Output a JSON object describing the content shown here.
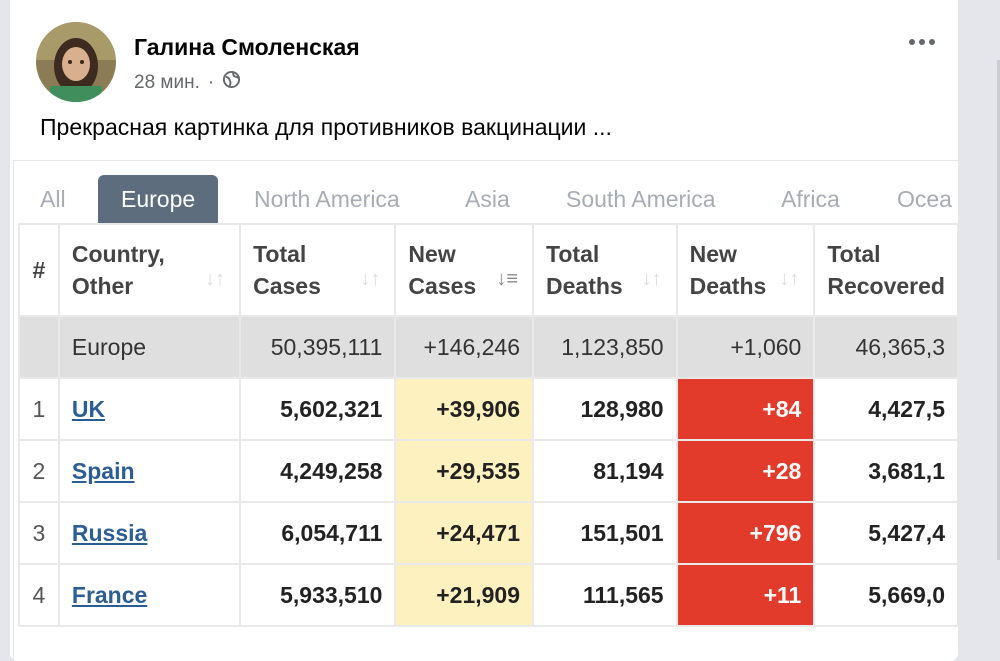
{
  "post": {
    "author": "Галина Смоленская",
    "time": "28 мин.",
    "separator": "·",
    "privacy_icon": "globe-icon",
    "more_icon": "more-options-icon",
    "text": "Прекрасная картинка для противников вакцинации ..."
  },
  "tabs": [
    "All",
    "Europe",
    "North America",
    "Asia",
    "South America",
    "Africa",
    "Ocea"
  ],
  "active_tab": "Europe",
  "table": {
    "headers": {
      "rank": "#",
      "country": [
        "Country,",
        "Other"
      ],
      "total_cases": [
        "Total",
        "Cases"
      ],
      "new_cases": [
        "New",
        "Cases"
      ],
      "total_deaths": [
        "Total",
        "Deaths"
      ],
      "new_deaths": [
        "New",
        "Deaths"
      ],
      "total_recovered": [
        "Total",
        "Recovered"
      ]
    },
    "total": {
      "country": "Europe",
      "total_cases": "50,395,111",
      "new_cases": "+146,246",
      "total_deaths": "1,123,850",
      "new_deaths": "+1,060",
      "total_recovered": "46,365,3"
    },
    "rows": [
      {
        "rank": "1",
        "country": "UK",
        "total_cases": "5,602,321",
        "new_cases": "+39,906",
        "total_deaths": "128,980",
        "new_deaths": "+84",
        "total_recovered": "4,427,5"
      },
      {
        "rank": "2",
        "country": "Spain",
        "total_cases": "4,249,258",
        "new_cases": "+29,535",
        "total_deaths": "81,194",
        "new_deaths": "+28",
        "total_recovered": "3,681,1"
      },
      {
        "rank": "3",
        "country": "Russia",
        "total_cases": "6,054,711",
        "new_cases": "+24,471",
        "total_deaths": "151,501",
        "new_deaths": "+796",
        "total_recovered": "5,427,4"
      },
      {
        "rank": "4",
        "country": "France",
        "total_cases": "5,933,510",
        "new_cases": "+21,909",
        "total_deaths": "111,565",
        "new_deaths": "+11",
        "total_recovered": "5,669,0"
      }
    ]
  },
  "colors": {
    "active_tab": "#5d6d7e",
    "new_cases_bg": "#fcf1bf",
    "new_deaths_bg": "#e23b2c",
    "link": "#2c5d93",
    "total_row_bg": "#dfdfdf"
  }
}
